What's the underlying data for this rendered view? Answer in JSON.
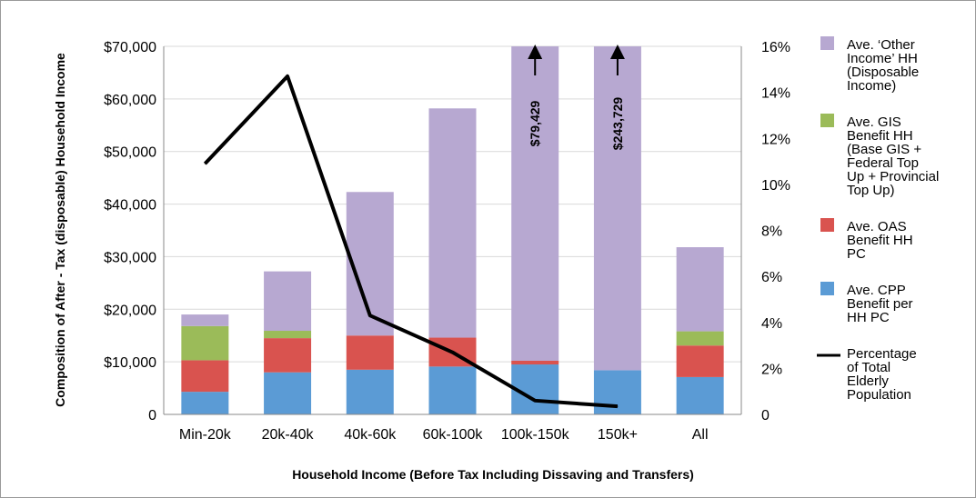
{
  "chart_data": {
    "type": "bar",
    "stacked": true,
    "categories": [
      "Min-20k",
      "20k-40k",
      "40k-60k",
      "60k-100k",
      "100k-150k",
      "150k+",
      "All"
    ],
    "xlabel": "Household Income (Before Tax Including Dissaving and Transfers)",
    "ylabel": "Composition of After - Tax (disposable) Household Income",
    "ylim": [
      0,
      70000
    ],
    "yticks": [
      "$70,000",
      "$60,000",
      "$50,000",
      "$40,000",
      "$30,000",
      "$20,000",
      "$10,000",
      "0"
    ],
    "y2lim": [
      0,
      16
    ],
    "y2ticks": [
      "16%",
      "14%",
      "12%",
      "10%",
      "8%",
      "6%",
      "4%",
      "2%",
      "0"
    ],
    "grid": true,
    "legend_position": "right",
    "series": [
      {
        "name": "Ave. CPP Benefit per HH PC",
        "color": "#5b9bd5",
        "values": [
          4300,
          8000,
          8500,
          9100,
          9500,
          8400,
          7100
        ]
      },
      {
        "name": "Ave. OAS Benefit HH PC",
        "color": "#d9534f",
        "values": [
          6000,
          6500,
          6500,
          5500,
          700,
          0,
          6000
        ]
      },
      {
        "name": "Ave. GIS Benefit HH (Base GIS + Federal Top Up + Provincial Top Up)",
        "color": "#9bbb59",
        "values": [
          6500,
          1400,
          0,
          0,
          0,
          0,
          2700
        ]
      },
      {
        "name": "Ave. 'Other Income' HH (Disposable Income)",
        "color": "#b7a8d1",
        "values": [
          2200,
          11300,
          27300,
          43600,
          59800,
          61600,
          16000
        ]
      }
    ],
    "line_series": {
      "name": "Percentage of Total Elderly Population",
      "color": "#000000",
      "axis": "right",
      "values": [
        10.9,
        14.7,
        4.3,
        2.7,
        0.6,
        0.35,
        null
      ]
    },
    "annotations": [
      {
        "category": "100k-150k",
        "text": "$79,429"
      },
      {
        "category": "150k+",
        "text": "$243,729"
      }
    ],
    "legend": [
      {
        "lines": [
          "Ave. ‘Other",
          "Income’ HH",
          "(Disposable",
          "Income)"
        ],
        "color": "#b7a8d1",
        "kind": "box"
      },
      {
        "lines": [
          "Ave. GIS",
          "Benefit HH",
          "(Base GIS +",
          "Federal Top",
          "Up + Provincial",
          "Top Up)"
        ],
        "color": "#9bbb59",
        "kind": "box"
      },
      {
        "lines": [
          "Ave. OAS",
          "Benefit HH",
          "PC"
        ],
        "color": "#d9534f",
        "kind": "box"
      },
      {
        "lines": [
          "Ave. CPP",
          "Benefit per",
          "HH PC"
        ],
        "color": "#5b9bd5",
        "kind": "box"
      },
      {
        "lines": [
          "Percentage",
          "of Total",
          "Elderly",
          "Population"
        ],
        "color": "#000000",
        "kind": "line"
      }
    ]
  }
}
